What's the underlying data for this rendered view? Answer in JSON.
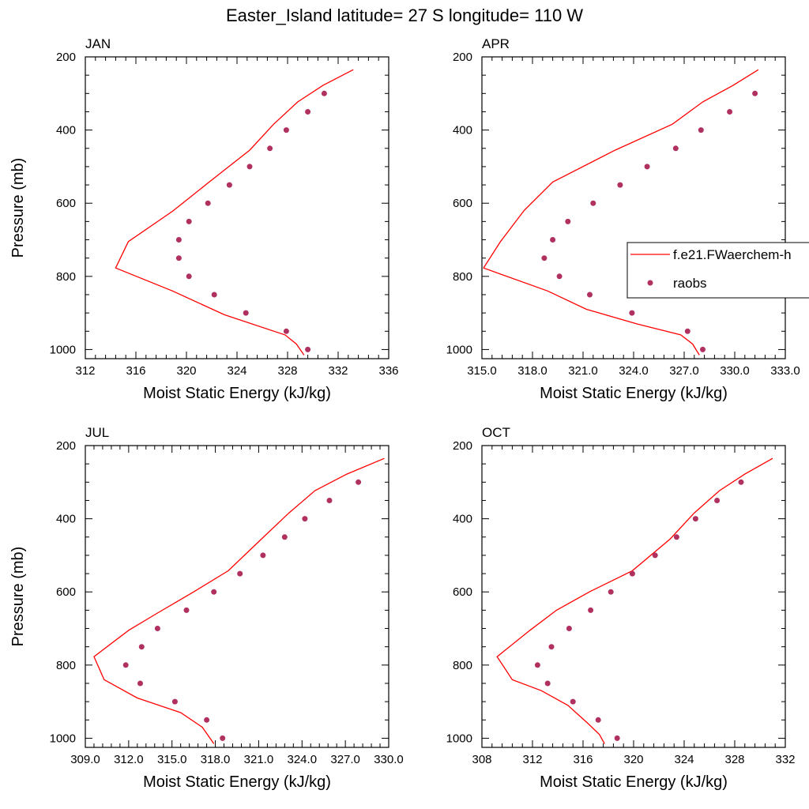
{
  "figure_title": "Easter_Island  latitude= 27 S longitude= 110 W",
  "legend": {
    "model_label": "f.e21.FWaerchem-h",
    "obs_label": "raobs"
  },
  "colors": {
    "model_line": "#ff0000",
    "obs_marker": "#b03060",
    "axis": "#000000",
    "background": "#ffffff"
  },
  "chart_data": [
    {
      "type": "line",
      "panel_label": "JAN",
      "xlabel": "Moist Static Energy (kJ/kg)",
      "ylabel": "Pressure (mb)",
      "xlim": [
        312,
        336
      ],
      "ylim": [
        200,
        1025
      ],
      "y_inverted": true,
      "xticks": [
        312,
        316,
        320,
        324,
        328,
        332,
        336
      ],
      "xtick_labels": [
        "312",
        "316",
        "320",
        "324",
        "328",
        "332",
        "336"
      ],
      "yticks": [
        200,
        400,
        600,
        800,
        1000
      ],
      "ytick_labels": [
        "200",
        "400",
        "600",
        "800",
        "1000"
      ],
      "series": [
        {
          "name": "f.e21.FWaerchem-h",
          "style": "line",
          "x": [
            333.2,
            330.8,
            328.8,
            326.9,
            325.0,
            321.8,
            318.9,
            315.4,
            314.4,
            318.9,
            323.0,
            327.8,
            328.7,
            329.3
          ],
          "y": [
            235,
            278,
            323,
            384,
            455,
            542,
            622,
            705,
            777,
            840,
            905,
            960,
            985,
            1015
          ]
        },
        {
          "name": "raobs",
          "style": "markers",
          "x": [
            330.9,
            329.6,
            327.9,
            326.6,
            325.0,
            323.4,
            321.7,
            320.2,
            319.4,
            319.4,
            320.2,
            322.2,
            324.7,
            327.9,
            329.6
          ],
          "y": [
            300,
            350,
            400,
            450,
            500,
            550,
            600,
            650,
            700,
            750,
            800,
            850,
            900,
            950,
            1000
          ]
        }
      ]
    },
    {
      "type": "line",
      "panel_label": "APR",
      "xlabel": "Moist Static Energy (kJ/kg)",
      "ylabel": "",
      "xlim": [
        315,
        333
      ],
      "ylim": [
        200,
        1025
      ],
      "y_inverted": true,
      "xticks": [
        315,
        318,
        321,
        324,
        327,
        330,
        333
      ],
      "xtick_labels": [
        "315.0",
        "318.0",
        "321.0",
        "324.0",
        "327.0",
        "330.0",
        "333.0"
      ],
      "yticks": [
        200,
        400,
        600,
        800,
        1000
      ],
      "ytick_labels": [
        "200",
        "400",
        "600",
        "800",
        "1000"
      ],
      "series": [
        {
          "name": "f.e21.FWaerchem-h",
          "style": "line",
          "x": [
            331.4,
            329.9,
            328.1,
            326.3,
            322.9,
            319.2,
            317.5,
            316.1,
            315.1,
            318.9,
            321.2,
            324.2,
            326.8,
            327.5,
            327.9
          ],
          "y": [
            235,
            278,
            323,
            384,
            455,
            542,
            620,
            705,
            777,
            840,
            890,
            930,
            960,
            985,
            1015
          ]
        },
        {
          "name": "raobs",
          "style": "markers",
          "x": [
            331.2,
            329.7,
            328.0,
            326.5,
            324.8,
            323.2,
            321.6,
            320.1,
            319.2,
            318.7,
            319.6,
            321.4,
            323.9,
            327.2,
            328.1
          ],
          "y": [
            300,
            350,
            400,
            450,
            500,
            550,
            600,
            650,
            700,
            750,
            800,
            850,
            900,
            950,
            1000
          ]
        }
      ]
    },
    {
      "type": "line",
      "panel_label": "JUL",
      "xlabel": "Moist Static Energy (kJ/kg)",
      "ylabel": "Pressure (mb)",
      "xlim": [
        309,
        330
      ],
      "ylim": [
        200,
        1025
      ],
      "y_inverted": true,
      "xticks": [
        309,
        312,
        315,
        318,
        321,
        324,
        327,
        330
      ],
      "xtick_labels": [
        "309.0",
        "312.0",
        "315.0",
        "318.0",
        "321.0",
        "324.0",
        "327.0",
        "330.0"
      ],
      "yticks": [
        200,
        400,
        600,
        800,
        1000
      ],
      "ytick_labels": [
        "200",
        "400",
        "600",
        "800",
        "1000"
      ],
      "series": [
        {
          "name": "f.e21.FWaerchem-h",
          "style": "line",
          "x": [
            329.7,
            327.1,
            324.9,
            323.1,
            321.2,
            318.9,
            316.5,
            313.9,
            312.0,
            309.6,
            310.3,
            312.6,
            315.6,
            317.1,
            317.9
          ],
          "y": [
            235,
            278,
            323,
            384,
            455,
            542,
            600,
            660,
            705,
            777,
            840,
            890,
            930,
            970,
            1015
          ]
        },
        {
          "name": "raobs",
          "style": "markers",
          "x": [
            327.9,
            325.9,
            324.2,
            322.8,
            321.3,
            319.7,
            317.9,
            316.0,
            314.0,
            312.9,
            311.8,
            312.8,
            315.2,
            317.4,
            318.5
          ],
          "y": [
            300,
            350,
            400,
            450,
            500,
            550,
            600,
            650,
            700,
            750,
            800,
            850,
            900,
            950,
            1000
          ]
        }
      ]
    },
    {
      "type": "line",
      "panel_label": "OCT",
      "xlabel": "Moist Static Energy (kJ/kg)",
      "ylabel": "",
      "xlim": [
        308,
        332
      ],
      "ylim": [
        200,
        1025
      ],
      "y_inverted": true,
      "xticks": [
        308,
        312,
        316,
        320,
        324,
        328,
        332
      ],
      "xtick_labels": [
        "308",
        "312",
        "316",
        "320",
        "324",
        "328",
        "332"
      ],
      "yticks": [
        200,
        400,
        600,
        800,
        1000
      ],
      "ytick_labels": [
        "200",
        "400",
        "600",
        "800",
        "1000"
      ],
      "series": [
        {
          "name": "f.e21.FWaerchem-h",
          "style": "line",
          "x": [
            331.0,
            328.8,
            326.8,
            324.8,
            322.9,
            319.9,
            316.5,
            313.9,
            311.8,
            309.2,
            310.4,
            312.7,
            314.8,
            316.4,
            317.3,
            317.7
          ],
          "y": [
            235,
            278,
            323,
            384,
            455,
            542,
            600,
            650,
            705,
            777,
            840,
            870,
            910,
            960,
            990,
            1015
          ]
        },
        {
          "name": "raobs",
          "style": "markers",
          "x": [
            328.5,
            326.6,
            324.9,
            323.4,
            321.7,
            319.9,
            318.2,
            316.6,
            314.9,
            313.5,
            312.4,
            313.2,
            315.2,
            317.2,
            318.7
          ],
          "y": [
            300,
            350,
            400,
            450,
            500,
            550,
            600,
            650,
            700,
            750,
            800,
            850,
            900,
            950,
            1000
          ]
        }
      ]
    }
  ]
}
